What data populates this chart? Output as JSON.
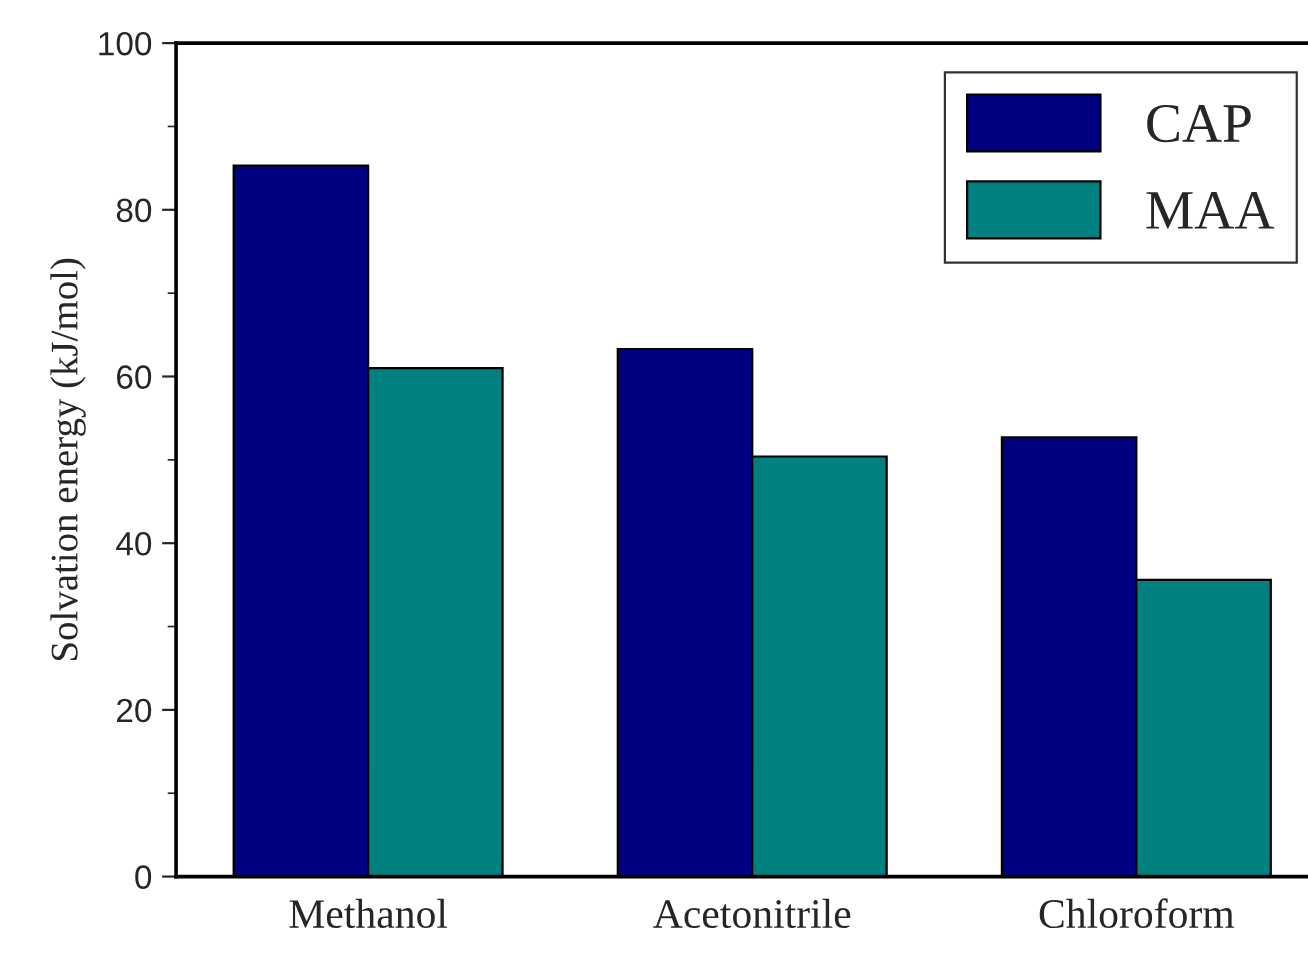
{
  "chart_data": {
    "type": "bar",
    "ylabel": "Solvation energy (kJ/mol)",
    "categories": [
      "Methanol",
      "Acetonitrile",
      "Chloroform"
    ],
    "series": [
      {
        "name": "CAP",
        "color": "#000080",
        "values": [
          85.3,
          63.3,
          52.7
        ]
      },
      {
        "name": "MAA",
        "color": "#008080",
        "values": [
          61.0,
          50.4,
          35.6
        ]
      }
    ],
    "ylim": [
      0,
      100
    ],
    "yticks": [
      0,
      20,
      40,
      60,
      80,
      100
    ],
    "legend": "top right",
    "grid": false
  }
}
